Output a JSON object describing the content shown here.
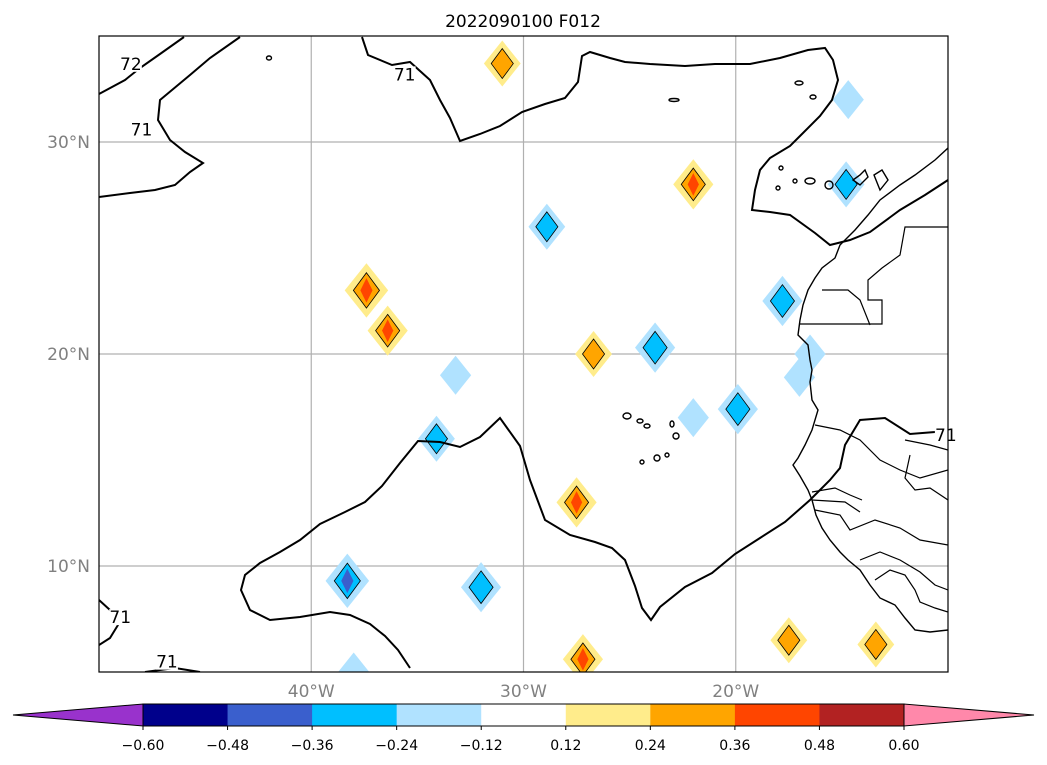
{
  "chart_data": {
    "type": "heatmap",
    "title": "2022090100 F012",
    "map": {
      "projection": "plate-carree",
      "lon_range": [
        -50,
        -10
      ],
      "lat_range": [
        5,
        35
      ],
      "grid": true,
      "lat_ticks": [
        {
          "value": 10,
          "label": "10°N"
        },
        {
          "value": 20,
          "label": "20°N"
        },
        {
          "value": 30,
          "label": "30°N"
        }
      ],
      "lon_ticks": [
        {
          "value": -40,
          "label": "40°W"
        },
        {
          "value": -30,
          "label": "30°W"
        },
        {
          "value": -20,
          "label": "20°W"
        }
      ]
    },
    "colorbar": {
      "orientation": "horizontal",
      "extend": "both",
      "levels": [
        -0.6,
        -0.48,
        -0.36,
        -0.24,
        -0.12,
        0.12,
        0.24,
        0.36,
        0.48,
        0.6
      ],
      "tick_labels": [
        "−0.60",
        "−0.48",
        "−0.36",
        "−0.24",
        "−0.12",
        "0.12",
        "0.24",
        "0.36",
        "0.48",
        "0.60"
      ],
      "under_color": "#9932cc",
      "over_color": "#ff88aa",
      "colors": [
        "#00008b",
        "#3a5fcd",
        "#00bfff",
        "#b0e2ff",
        "#ffffff",
        "#ffec8b",
        "#ffa500",
        "#ff4500",
        "#b22222"
      ]
    },
    "contour_labels": [
      {
        "text": "72",
        "lon": -48.5,
        "lat": 33.5
      },
      {
        "text": "71",
        "lon": -35.6,
        "lat": 33.0
      },
      {
        "text": "71",
        "lon": -48.0,
        "lat": 30.4
      },
      {
        "text": "71",
        "lon": -49.0,
        "lat": 7.4
      },
      {
        "text": "71",
        "lon": -46.8,
        "lat": 5.3
      },
      {
        "text": "71",
        "lon": -10.1,
        "lat": 16.0
      }
    ],
    "anomalies": [
      {
        "lon": -28.9,
        "lat": 26.0,
        "value": -0.3
      },
      {
        "lon": -37.4,
        "lat": 23.0,
        "value": 0.42
      },
      {
        "lon": -36.4,
        "lat": 21.1,
        "value": 0.36
      },
      {
        "lon": -33.2,
        "lat": 19.0,
        "value": -0.2
      },
      {
        "lon": -31.0,
        "lat": 33.7,
        "value": 0.3
      },
      {
        "lon": -22.0,
        "lat": 28.0,
        "value": 0.36
      },
      {
        "lon": -14.7,
        "lat": 32.0,
        "value": -0.2
      },
      {
        "lon": -14.8,
        "lat": 28.0,
        "value": -0.3
      },
      {
        "lon": -17.8,
        "lat": 22.5,
        "value": -0.36
      },
      {
        "lon": -16.5,
        "lat": 20.0,
        "value": -0.2
      },
      {
        "lon": -17.0,
        "lat": 18.9,
        "value": -0.2
      },
      {
        "lon": -26.7,
        "lat": 20.0,
        "value": 0.3
      },
      {
        "lon": -23.8,
        "lat": 20.3,
        "value": -0.36
      },
      {
        "lon": -22.0,
        "lat": 17.0,
        "value": -0.2
      },
      {
        "lon": -19.9,
        "lat": 17.4,
        "value": -0.36
      },
      {
        "lon": -34.1,
        "lat": 16.0,
        "value": -0.3
      },
      {
        "lon": -27.5,
        "lat": 13.0,
        "value": 0.36
      },
      {
        "lon": -38.3,
        "lat": 9.3,
        "value": -0.42
      },
      {
        "lon": -32.0,
        "lat": 9.0,
        "value": -0.36
      },
      {
        "lon": -27.2,
        "lat": 5.6,
        "value": 0.36
      },
      {
        "lon": -17.5,
        "lat": 6.5,
        "value": 0.3
      },
      {
        "lon": -13.4,
        "lat": 6.3,
        "value": 0.3
      },
      {
        "lon": -38.0,
        "lat": 5.0,
        "value": -0.2
      }
    ]
  }
}
